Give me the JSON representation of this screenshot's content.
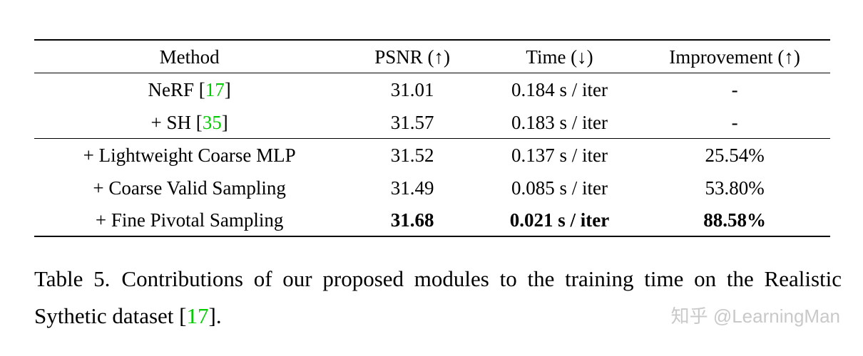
{
  "colors": {
    "citation_green": "#00cc00",
    "watermark_gray": "#c9c9c9",
    "text": "#000000",
    "background": "#ffffff"
  },
  "table": {
    "columns": [
      "Method",
      "PSNR (↑)",
      "Time (↓)",
      "Improvement (↑)"
    ],
    "rows": [
      {
        "method_prefix": "NeRF [",
        "method_cite": "17",
        "method_suffix": "]",
        "psnr": "31.01",
        "time": "0.184 s / iter",
        "improvement": "-"
      },
      {
        "method_prefix": "+ SH [",
        "method_cite": "35",
        "method_suffix": "]",
        "psnr": "31.57",
        "time": "0.183 s / iter",
        "improvement": "-"
      },
      {
        "method_prefix": "+ Lightweight Coarse MLP",
        "method_cite": "",
        "method_suffix": "",
        "psnr": "31.52",
        "time": "0.137 s / iter",
        "improvement": "25.54%"
      },
      {
        "method_prefix": "+ Coarse Valid Sampling",
        "method_cite": "",
        "method_suffix": "",
        "psnr": "31.49",
        "time": "0.085 s / iter",
        "improvement": "53.80%"
      },
      {
        "method_prefix": "+ Fine Pivotal Sampling",
        "method_cite": "",
        "method_suffix": "",
        "psnr": "31.68",
        "time": "0.021 s / iter",
        "improvement": "88.58%"
      }
    ]
  },
  "caption": {
    "label": "Table 5.",
    "body_before_cite": "Contributions of our proposed modules to the training time on the Realistic Sythetic dataset [",
    "cite": "17",
    "body_after_cite": "]."
  },
  "watermark": {
    "text": "知乎 @LearningMan"
  }
}
